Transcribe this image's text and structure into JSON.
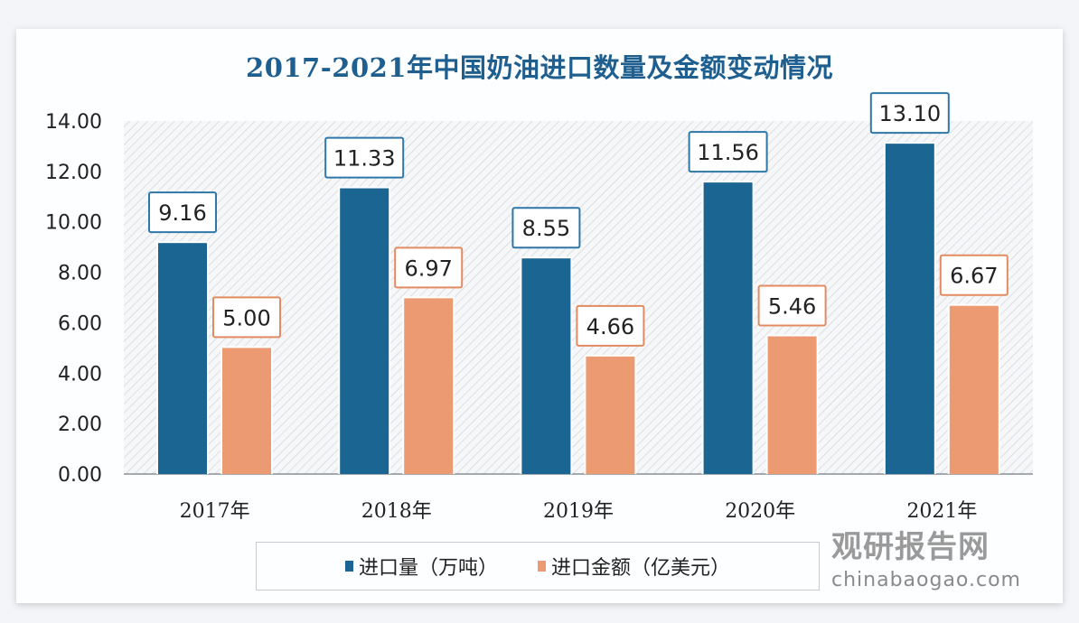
{
  "chart_data": {
    "type": "bar",
    "title": "2017-2021年中国奶油进口数量及金额变动情况",
    "categories": [
      "2017年",
      "2018年",
      "2019年",
      "2020年",
      "2021年"
    ],
    "series": [
      {
        "name": "进口量（万吨）",
        "color": "#1a6591",
        "values": [
          9.16,
          11.33,
          8.55,
          11.56,
          13.1
        ],
        "labels": [
          "9.16",
          "11.33",
          "8.55",
          "11.56",
          "13.10"
        ]
      },
      {
        "name": "进口金额（亿美元）",
        "color": "#eb9a72",
        "values": [
          5.0,
          6.97,
          4.66,
          5.46,
          6.67
        ],
        "labels": [
          "5.00",
          "6.97",
          "4.66",
          "5.46",
          "6.67"
        ]
      }
    ],
    "ylim": [
      0,
      14
    ],
    "yticks": [
      "0.00",
      "2.00",
      "4.00",
      "6.00",
      "8.00",
      "10.00",
      "12.00",
      "14.00"
    ],
    "legend": "bottom",
    "grid": false,
    "plot_background": "diagonal hatch"
  },
  "watermark": {
    "cn": "观研报告网",
    "en": "chinabaogao.com"
  }
}
